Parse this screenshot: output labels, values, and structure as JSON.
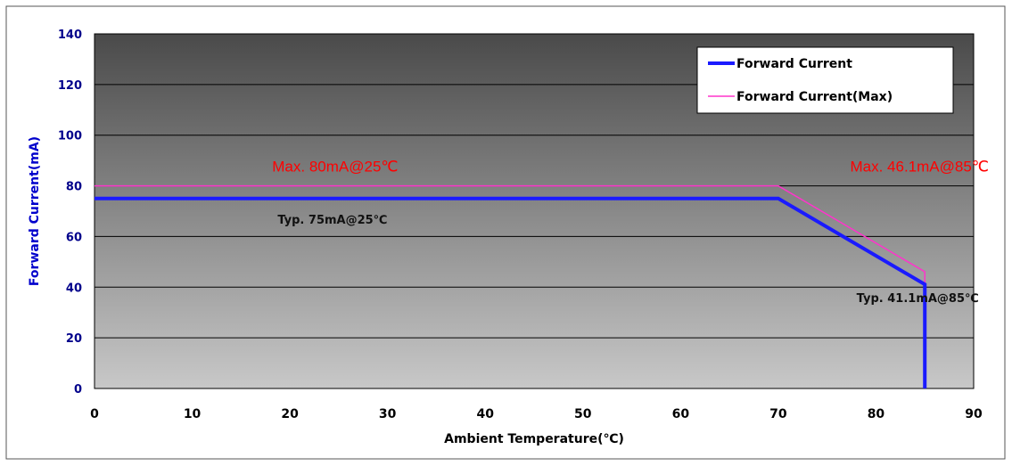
{
  "chart_data": {
    "type": "line",
    "title": "",
    "xlabel": "Ambient Temperature(℃)",
    "ylabel": "Forward Current(mA)",
    "xlim": [
      0,
      90
    ],
    "ylim": [
      0,
      140
    ],
    "xticks": [
      0,
      10,
      20,
      30,
      40,
      50,
      60,
      70,
      80,
      90
    ],
    "yticks": [
      0,
      20,
      40,
      60,
      80,
      100,
      120,
      140
    ],
    "grid": "horizontal",
    "legend_position": "top-right",
    "series": [
      {
        "name": "Forward Current",
        "color": "#1a1aff",
        "points": [
          [
            0,
            75
          ],
          [
            70,
            75
          ],
          [
            85,
            41.1
          ],
          [
            85,
            0
          ]
        ]
      },
      {
        "name": "Forward Current(Max)",
        "color": "#ff33cc",
        "points": [
          [
            0,
            80
          ],
          [
            70,
            80
          ],
          [
            85,
            46.1
          ],
          [
            85,
            41.1
          ]
        ]
      }
    ],
    "annotations": [
      {
        "text": "Max. 80mA@25℃",
        "x": 25,
        "y": 80,
        "color": "#ff0000"
      },
      {
        "text": "Typ. 75mA@25℃",
        "x": 25,
        "y": 75,
        "color": "#111111"
      },
      {
        "text": "Max. 46.1mA@85℃",
        "x": 85,
        "y": 80,
        "color": "#ff0000"
      },
      {
        "text": "Typ. 41.1mA@85℃",
        "x": 85,
        "y": 41.1,
        "color": "#111111"
      }
    ],
    "colors": {
      "axis_label": "#0000cc",
      "tick_label": "#00008b",
      "background_top": "#4a4a4a",
      "background_bottom": "#c8c8c8"
    }
  }
}
